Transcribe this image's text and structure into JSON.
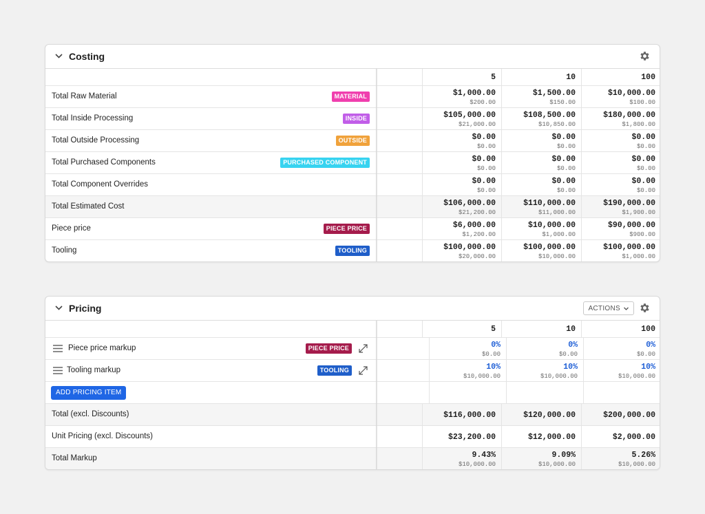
{
  "costing": {
    "title": "Costing",
    "columns": [
      "5",
      "10",
      "100"
    ],
    "rows": [
      {
        "label": "Total Raw Material",
        "tag": "MATERIAL",
        "values": [
          [
            "$1,000.00",
            "$200.00"
          ],
          [
            "$1,500.00",
            "$150.00"
          ],
          [
            "$10,000.00",
            "$100.00"
          ]
        ]
      },
      {
        "label": "Total Inside Processing",
        "tag": "INSIDE",
        "values": [
          [
            "$105,000.00",
            "$21,000.00"
          ],
          [
            "$108,500.00",
            "$10,850.00"
          ],
          [
            "$180,000.00",
            "$1,800.00"
          ]
        ]
      },
      {
        "label": "Total Outside Processing",
        "tag": "OUTSIDE",
        "values": [
          [
            "$0.00",
            "$0.00"
          ],
          [
            "$0.00",
            "$0.00"
          ],
          [
            "$0.00",
            "$0.00"
          ]
        ]
      },
      {
        "label": "Total Purchased Components",
        "tag": "PURCHASED COMPONENT",
        "values": [
          [
            "$0.00",
            "$0.00"
          ],
          [
            "$0.00",
            "$0.00"
          ],
          [
            "$0.00",
            "$0.00"
          ]
        ]
      },
      {
        "label": "Total Component Overrides",
        "tag": "",
        "values": [
          [
            "$0.00",
            "$0.00"
          ],
          [
            "$0.00",
            "$0.00"
          ],
          [
            "$0.00",
            "$0.00"
          ]
        ]
      },
      {
        "label": "Total Estimated Cost",
        "tag": "",
        "values": [
          [
            "$106,000.00",
            "$21,200.00"
          ],
          [
            "$110,000.00",
            "$11,000.00"
          ],
          [
            "$190,000.00",
            "$1,900.00"
          ]
        ]
      },
      {
        "label": "Piece price",
        "tag": "PIECE PRICE",
        "values": [
          [
            "$6,000.00",
            "$1,200.00"
          ],
          [
            "$10,000.00",
            "$1,000.00"
          ],
          [
            "$90,000.00",
            "$900.00"
          ]
        ]
      },
      {
        "label": "Tooling",
        "tag": "TOOLING",
        "values": [
          [
            "$100,000.00",
            "$20,000.00"
          ],
          [
            "$100,000.00",
            "$10,000.00"
          ],
          [
            "$100,000.00",
            "$1,000.00"
          ]
        ]
      }
    ]
  },
  "pricing": {
    "title": "Pricing",
    "actions_label": "ACTIONS",
    "columns": [
      "5",
      "10",
      "100"
    ],
    "items": [
      {
        "label": "Piece price markup",
        "tag": "PIECE PRICE",
        "values": [
          [
            "0%",
            "$0.00"
          ],
          [
            "0%",
            "$0.00"
          ],
          [
            "0%",
            "$0.00"
          ]
        ]
      },
      {
        "label": "Tooling markup",
        "tag": "TOOLING",
        "values": [
          [
            "10%",
            "$10,000.00"
          ],
          [
            "10%",
            "$10,000.00"
          ],
          [
            "10%",
            "$10,000.00"
          ]
        ]
      }
    ],
    "add_button_label": "ADD PRICING ITEM",
    "totals": [
      {
        "label": "Total (excl. Discounts)",
        "values": [
          "$116,000.00",
          "$120,000.00",
          "$200,000.00"
        ]
      },
      {
        "label": "Unit Pricing (excl. Discounts)",
        "values": [
          "$23,200.00",
          "$12,000.00",
          "$2,000.00"
        ]
      },
      {
        "label": "Total Markup",
        "values": [
          [
            "9.43%",
            "$10,000.00"
          ],
          [
            "9.09%",
            "$10,000.00"
          ],
          [
            "5.26%",
            "$10,000.00"
          ]
        ]
      }
    ]
  },
  "colors": {
    "material": "#f03fae",
    "inside": "#c15ee8",
    "outside": "#f0a23b",
    "purchased_component": "#37d3f0",
    "piece_price": "#a51c4c",
    "tooling": "#1f5ec9",
    "primary_button": "#1f66e5",
    "markup_percent": "#1f5fd6"
  }
}
